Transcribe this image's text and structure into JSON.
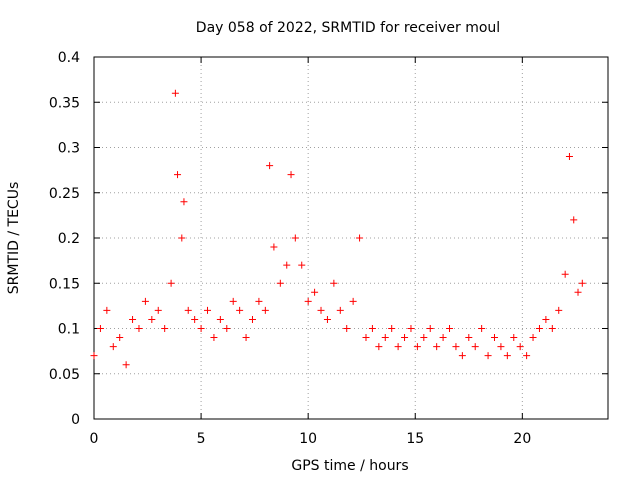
{
  "chart_data": {
    "type": "scatter",
    "title": "Day 058 of 2022, SRMTID for receiver moul",
    "xlabel": "GPS time / hours",
    "ylabel": "SRMTID / TECUs",
    "xlim": [
      0,
      24
    ],
    "ylim": [
      0,
      0.4
    ],
    "xticks": [
      0,
      5,
      10,
      15,
      20
    ],
    "xtick_labels": [
      "0",
      "5",
      "10",
      "15",
      "20"
    ],
    "yticks": [
      0,
      0.05,
      0.1,
      0.15,
      0.2,
      0.25,
      0.3,
      0.35,
      0.4
    ],
    "ytick_labels": [
      "0",
      "0.05",
      "0.1",
      "0.15",
      "0.2",
      "0.25",
      "0.3",
      "0.35",
      "0.4"
    ],
    "grid": true,
    "marker": "plus",
    "color": "#ff0000",
    "series": [
      {
        "name": "moul",
        "x": [
          0.0,
          0.3,
          0.6,
          0.9,
          1.2,
          1.5,
          1.8,
          2.1,
          2.4,
          2.7,
          3.0,
          3.3,
          3.6,
          3.8,
          3.9,
          4.1,
          4.2,
          4.4,
          4.7,
          5.0,
          5.3,
          5.6,
          5.9,
          6.2,
          6.5,
          6.8,
          7.1,
          7.4,
          7.7,
          8.0,
          8.2,
          8.4,
          8.7,
          9.0,
          9.2,
          9.4,
          9.7,
          10.0,
          10.3,
          10.6,
          10.9,
          11.2,
          11.5,
          11.8,
          12.1,
          12.4,
          12.7,
          13.0,
          13.3,
          13.6,
          13.9,
          14.2,
          14.5,
          14.8,
          15.1,
          15.4,
          15.7,
          16.0,
          16.3,
          16.6,
          16.9,
          17.2,
          17.5,
          17.8,
          18.1,
          18.4,
          18.7,
          19.0,
          19.3,
          19.6,
          19.9,
          20.2,
          20.5,
          20.8,
          21.1,
          21.4,
          21.7,
          22.0,
          22.2,
          22.4,
          22.6,
          22.8
        ],
        "y": [
          0.07,
          0.1,
          0.12,
          0.08,
          0.09,
          0.06,
          0.11,
          0.1,
          0.13,
          0.11,
          0.12,
          0.1,
          0.15,
          0.36,
          0.27,
          0.2,
          0.24,
          0.12,
          0.11,
          0.1,
          0.12,
          0.09,
          0.11,
          0.1,
          0.13,
          0.12,
          0.09,
          0.11,
          0.13,
          0.12,
          0.28,
          0.19,
          0.15,
          0.17,
          0.27,
          0.2,
          0.17,
          0.13,
          0.14,
          0.12,
          0.11,
          0.15,
          0.12,
          0.1,
          0.13,
          0.2,
          0.09,
          0.1,
          0.08,
          0.09,
          0.1,
          0.08,
          0.09,
          0.1,
          0.08,
          0.09,
          0.1,
          0.08,
          0.09,
          0.1,
          0.08,
          0.07,
          0.09,
          0.08,
          0.1,
          0.07,
          0.09,
          0.08,
          0.07,
          0.09,
          0.08,
          0.07,
          0.09,
          0.1,
          0.11,
          0.1,
          0.12,
          0.16,
          0.29,
          0.22,
          0.14,
          0.15
        ]
      }
    ]
  }
}
